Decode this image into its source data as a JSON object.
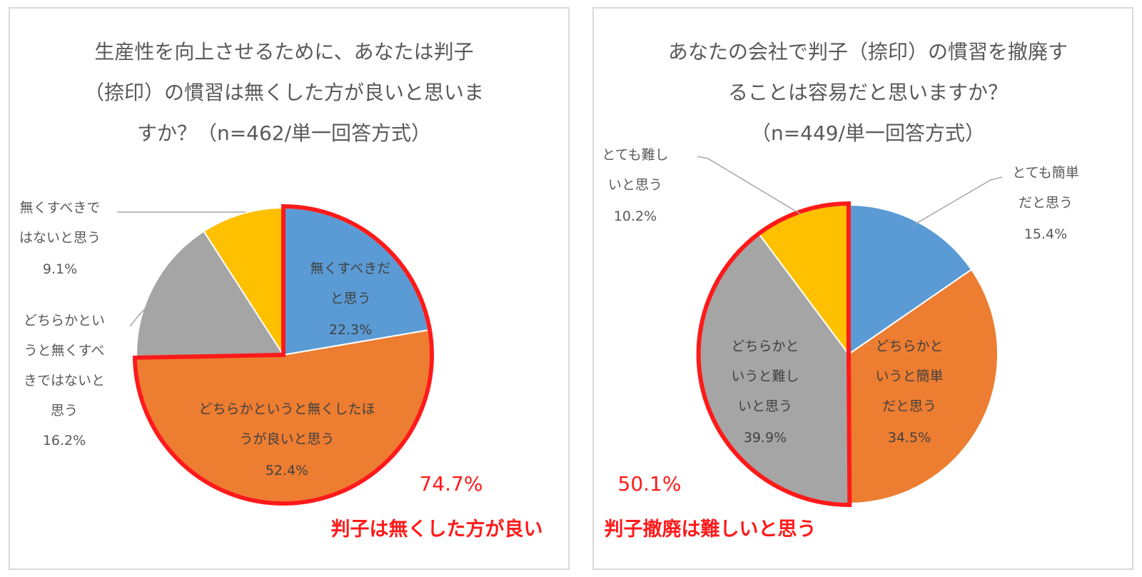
{
  "colors": {
    "blue": "#5b9bd5",
    "orange": "#ed7d31",
    "gray": "#a5a5a5",
    "yellow": "#ffc000",
    "highlight": "#ff1a1a"
  },
  "chart_data": [
    {
      "type": "pie",
      "title_lines": [
        "生産性を向上させるために、あなたは判子",
        "（捺印）の慣習は無くした方が良いと思いま",
        "すか？（n=462/単一回答方式）"
      ],
      "slices": [
        {
          "label_lines": [
            "無くすべきだ",
            "と思う"
          ],
          "value": 22.3,
          "value_label": "22.3%",
          "color": "#5b9bd5"
        },
        {
          "label_lines": [
            "どちらかというと無くしたほ",
            "うが良いと思う"
          ],
          "value": 52.4,
          "value_label": "52.4%",
          "color": "#ed7d31"
        },
        {
          "label_lines": [
            "どちらかとい",
            "うと無くすべ",
            "きではないと",
            "思う"
          ],
          "value": 16.2,
          "value_label": "16.2%",
          "color": "#a5a5a5"
        },
        {
          "label_lines": [
            "無くすべきで",
            "はないと思う"
          ],
          "value": 9.1,
          "value_label": "9.1%",
          "color": "#ffc000"
        }
      ],
      "highlight_total": "74.7%",
      "highlight_caption": "判子は無くした方が良い"
    },
    {
      "type": "pie",
      "title_lines": [
        "あなたの会社で判子（捺印）の慣習を撤廃す",
        "ることは容易だと思いますか？",
        "（n=449/単一回答方式）"
      ],
      "slices": [
        {
          "label_lines": [
            "とても簡単",
            "だと思う"
          ],
          "value": 15.4,
          "value_label": "15.4%",
          "color": "#5b9bd5"
        },
        {
          "label_lines": [
            "どちらかと",
            "いうと簡単",
            "だと思う"
          ],
          "value": 34.5,
          "value_label": "34.5%",
          "color": "#ed7d31"
        },
        {
          "label_lines": [
            "どちらかと",
            "いうと難し",
            "いと思う"
          ],
          "value": 39.9,
          "value_label": "39.9%",
          "color": "#a5a5a5"
        },
        {
          "label_lines": [
            "とても難し",
            "いと思う"
          ],
          "value": 10.2,
          "value_label": "10.2%",
          "color": "#ffc000"
        }
      ],
      "highlight_total": "50.1%",
      "highlight_caption": "判子撤廃は難しいと思う"
    }
  ]
}
